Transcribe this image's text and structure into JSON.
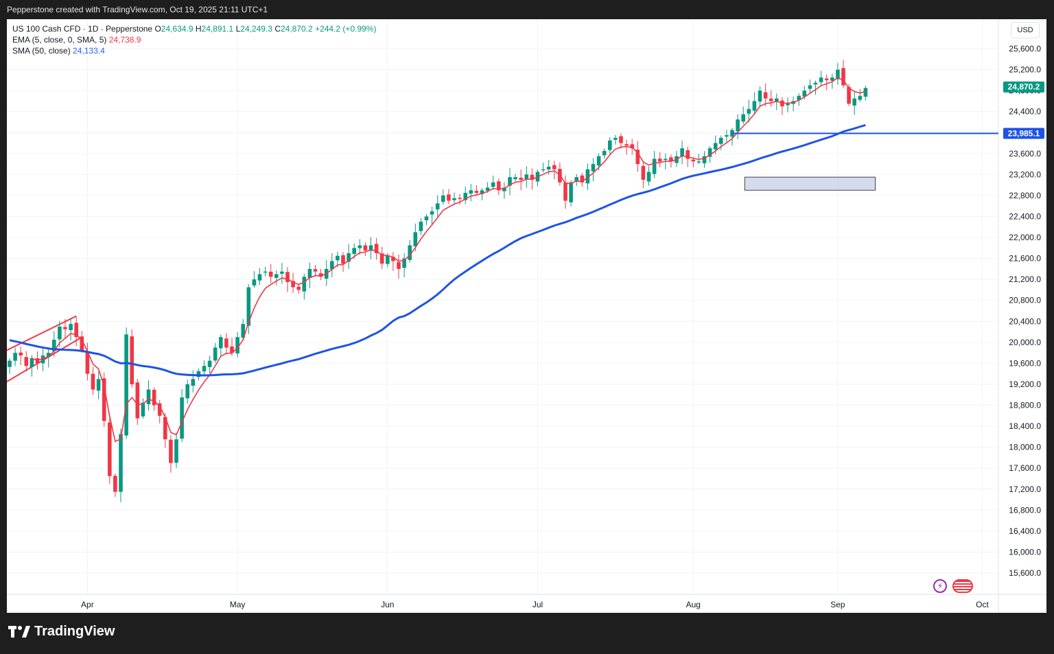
{
  "header": {
    "text": "Pepperstone created with TradingView.com, Oct 19, 2025 21:11 UTC+1"
  },
  "legend": {
    "symbol": "US 100 Cash CFD · 1D · Pepperstone",
    "open_label": "O",
    "open": "24,634.9",
    "high_label": "H",
    "high": "24,891.1",
    "low_label": "L",
    "low": "24,249.3",
    "close_label": "C",
    "close": "24,870.2",
    "change": "+244.2 (+0.99%)",
    "ema_label": "EMA (5, close, 0, SMA, 5)",
    "ema_value": "24,738.9",
    "sma_label": "SMA (50, close)",
    "sma_value": "24,133.4"
  },
  "currency": "USD",
  "footer": {
    "brand": "TradingView"
  },
  "colors": {
    "up": "#089981",
    "down": "#f23645",
    "ema": "#f23645",
    "sma": "#1e53e5",
    "hline": "#1e53e5",
    "grid": "#f0f3fa"
  },
  "chart_data": {
    "type": "candlestick",
    "y_axis": {
      "ylim": [
        15300,
        25900
      ],
      "ticks": [
        "25,600.0",
        "25,200.0",
        "24,800.0",
        "24,400.0",
        "24,000.0",
        "23,600.0",
        "23,200.0",
        "22,800.0",
        "22,400.0",
        "22,000.0",
        "21,600.0",
        "21,200.0",
        "20,800.0",
        "20,400.0",
        "20,000.0",
        "19,600.0",
        "19,200.0",
        "18,800.0",
        "18,400.0",
        "18,000.0",
        "17,600.0",
        "17,200.0",
        "16,800.0",
        "16,400.0",
        "16,000.0",
        "15,600.0"
      ],
      "tick_values": [
        25600,
        25200,
        24800,
        24400,
        24000,
        23600,
        23200,
        22800,
        22400,
        22000,
        21600,
        21200,
        20800,
        20400,
        20000,
        19600,
        19200,
        18800,
        18400,
        18000,
        17600,
        17200,
        16800,
        16400,
        16000,
        15600
      ],
      "position": "right"
    },
    "x_axis": {
      "labels": [
        "Apr",
        "May",
        "Jun",
        "Jul",
        "Aug",
        "Sep",
        "Oct"
      ],
      "label_bar_index": [
        14,
        41,
        68,
        95,
        123,
        149,
        175
      ]
    },
    "price_labels": [
      {
        "text": "24,870.2",
        "value": 24870.2,
        "color": "#089981"
      },
      {
        "text": "23,985.1",
        "value": 23985.1,
        "color": "#1e53e5"
      }
    ],
    "horizontal_line": {
      "value": 23985.1,
      "from_bar": 130
    },
    "trend_channel": [
      {
        "x0": 0,
        "y0": 19850,
        "x1": 12,
        "y1": 20500
      },
      {
        "x0": 0,
        "y0": 19250,
        "x1": 13,
        "y1": 20100
      }
    ],
    "zone": {
      "from_bar": 133,
      "to_bar": 155,
      "top": 23150,
      "bottom": 22900
    },
    "closes": [
      19650,
      19800,
      19750,
      19550,
      19700,
      19600,
      19750,
      19800,
      20050,
      20300,
      20250,
      20350,
      20100,
      19850,
      19400,
      19100,
      19300,
      18500,
      17450,
      17150,
      18250,
      20150,
      19200,
      18550,
      18850,
      19100,
      18800,
      18600,
      18150,
      17700,
      18150,
      18950,
      19200,
      19300,
      19450,
      19550,
      19650,
      19900,
      20100,
      19900,
      19800,
      20100,
      20350,
      21050,
      21200,
      21300,
      21350,
      21250,
      21300,
      21350,
      21150,
      21050,
      21000,
      21250,
      21400,
      21350,
      21250,
      21400,
      21550,
      21650,
      21500,
      21700,
      21800,
      21850,
      21750,
      21850,
      21700,
      21500,
      21650,
      21550,
      21400,
      21600,
      21850,
      22100,
      22300,
      22400,
      22500,
      22650,
      22800,
      22700,
      22750,
      22750,
      22850,
      22900,
      22850,
      22900,
      22950,
      23050,
      22900,
      22950,
      23150,
      23150,
      23100,
      23200,
      23100,
      23250,
      23300,
      23350,
      23300,
      23050,
      22700,
      23050,
      23150,
      23050,
      23300,
      23400,
      23550,
      23650,
      23850,
      23900,
      23800,
      23750,
      23700,
      23400,
      23100,
      23250,
      23500,
      23450,
      23500,
      23450,
      23550,
      23700,
      23500,
      23450,
      23450,
      23550,
      23700,
      23800,
      23900,
      23950,
      24050,
      24250,
      24350,
      24450,
      24600,
      24800,
      24650,
      24600,
      24650,
      24500,
      24550,
      24600,
      24700,
      24800,
      24900,
      24950,
      25050,
      25000,
      25050,
      25200,
      24900,
      24550,
      24650,
      24700,
      24850
    ],
    "extra_bars_note": "",
    "ema": {
      "period": 5,
      "last": 24738.9
    },
    "sma": {
      "period": 50,
      "last": 24133.4
    }
  }
}
